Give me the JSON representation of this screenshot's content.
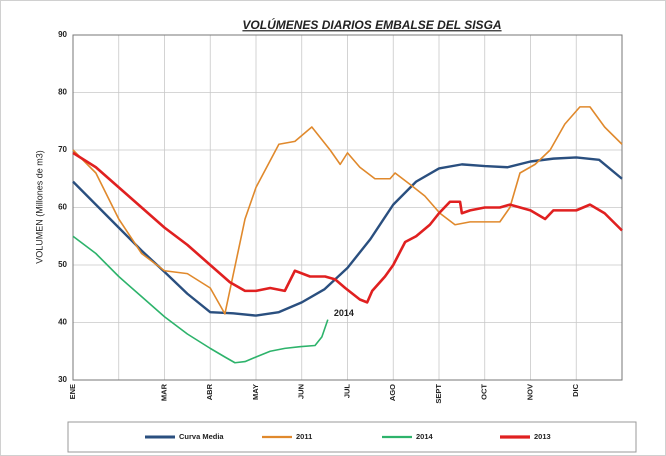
{
  "chart_data": {
    "type": "line",
    "title": "VOLÚMENES DIARIOS EMBALSE DEL SISGA",
    "y_label": "VOLUMEN (Millones de m3)",
    "annotation": "2014",
    "xlim": [
      0,
      12
    ],
    "xticks": [
      {
        "value": 0,
        "label": "ENE"
      },
      {
        "value": 1,
        "label": null
      },
      {
        "value": 2,
        "label": "MAR"
      },
      {
        "value": 3,
        "label": "ABR"
      },
      {
        "value": 4,
        "label": "MAY"
      },
      {
        "value": 5,
        "label": "JUN"
      },
      {
        "value": 6,
        "label": "JUL"
      },
      {
        "value": 7,
        "label": "AGO"
      },
      {
        "value": 8,
        "label": "SEPT"
      },
      {
        "value": 9,
        "label": "OCT"
      },
      {
        "value": 10,
        "label": "NOV"
      },
      {
        "value": 11,
        "label": "DIC"
      }
    ],
    "ylim": [
      30,
      90
    ],
    "yticks": [
      30,
      40,
      50,
      60,
      70,
      80,
      90
    ],
    "grid": true,
    "series": [
      {
        "name": "Curva Media",
        "color": "#2a4f7f",
        "width": 2.4,
        "x": [
          0,
          0.5,
          1,
          1.5,
          2,
          2.5,
          3,
          3.5,
          4,
          4.5,
          5,
          5.5,
          6,
          6.5,
          7,
          7.5,
          8,
          8.5,
          9,
          9.5,
          10,
          10.5,
          11,
          11.5,
          12
        ],
        "values": [
          64.5,
          60.5,
          56.5,
          52.5,
          48.8,
          45,
          41.8,
          41.6,
          41.2,
          41.8,
          43.5,
          45.8,
          49.5,
          54.5,
          60.5,
          64.5,
          66.8,
          67.5,
          67.2,
          67,
          68,
          68.5,
          68.7,
          68.3,
          65
        ]
      },
      {
        "name": "2011",
        "color": "#e0892c",
        "width": 1.6,
        "x": [
          0,
          0.5,
          1,
          1.5,
          2,
          2.5,
          3,
          3.32,
          3.76,
          4,
          4.5,
          4.85,
          5.22,
          5.62,
          5.84,
          6,
          6.27,
          6.6,
          6.93,
          7.04,
          7.37,
          7.69,
          8.02,
          8.35,
          8.68,
          9,
          9.33,
          9.55,
          9.77,
          10.1,
          10.43,
          10.75,
          11.08,
          11.3,
          11.62,
          12
        ],
        "values": [
          70,
          66,
          58,
          52,
          49,
          48.5,
          46,
          41.5,
          58,
          63.5,
          71,
          71.5,
          74,
          70,
          67.5,
          69.5,
          67,
          65,
          65,
          66,
          64,
          62,
          59,
          57,
          57.5,
          57.5,
          57.5,
          60,
          66,
          67.5,
          70,
          74.5,
          77.5,
          77.5,
          74,
          71
        ]
      },
      {
        "name": "2014",
        "color": "#2db36b",
        "width": 1.6,
        "x": [
          0,
          0.5,
          1,
          1.5,
          2,
          2.5,
          3,
          3.32,
          3.54,
          3.76,
          4,
          4.31,
          4.63,
          4.96,
          5.29,
          5.44,
          5.57
        ],
        "values": [
          55,
          52,
          48,
          44.5,
          41,
          38,
          35.5,
          34,
          33,
          33.2,
          34,
          35,
          35.5,
          35.8,
          36,
          37.5,
          40.5
        ]
      },
      {
        "name": "2013",
        "color": "#e02020",
        "width": 2.6,
        "x": [
          0,
          0.5,
          1,
          1.5,
          2,
          2.5,
          3,
          3.43,
          3.76,
          4,
          4.31,
          4.63,
          4.85,
          5.18,
          5.51,
          5.73,
          5.95,
          6.27,
          6.43,
          6.54,
          6.82,
          7,
          7.26,
          7.5,
          7.8,
          8,
          8.24,
          8.46,
          8.5,
          8.68,
          9,
          9.33,
          9.55,
          10,
          10.32,
          10.5,
          10.75,
          11,
          11.3,
          11.62,
          12
        ],
        "values": [
          69.5,
          67,
          63.5,
          60,
          56.5,
          53.5,
          50,
          47,
          45.5,
          45.5,
          46,
          45.5,
          49,
          48,
          48,
          47.5,
          46,
          44,
          43.5,
          45.5,
          48,
          50,
          54,
          55,
          57,
          59,
          61,
          61,
          59,
          59.5,
          60,
          60,
          60.5,
          59.5,
          58,
          59.5,
          59.5,
          59.5,
          60.5,
          59,
          56
        ]
      }
    ]
  }
}
